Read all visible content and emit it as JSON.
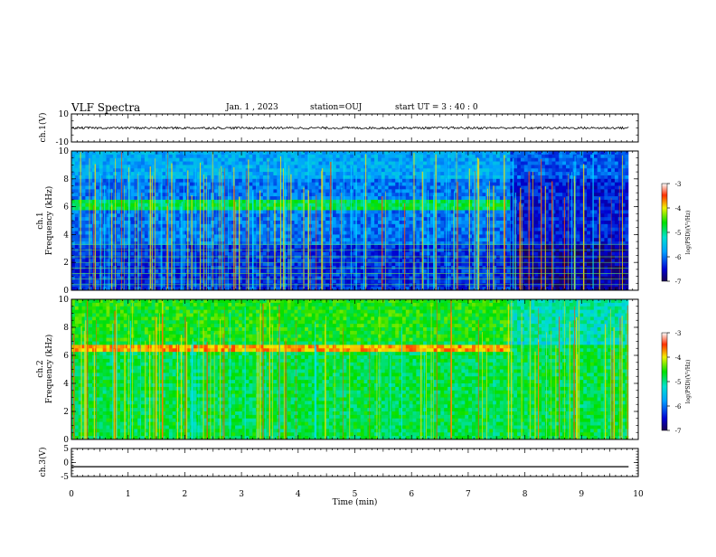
{
  "header": {
    "title": "VLF Spectra",
    "date": "Jan. 1 , 2023",
    "station": "station=OUJ",
    "start_ut": "start UT = 3 : 40 : 0"
  },
  "chart_data": [
    {
      "type": "line",
      "panel": "ch1-waveform",
      "ylabel": "ch.1(V)",
      "ylim": [
        -10,
        10
      ],
      "yticks": [
        "10",
        "-10"
      ],
      "x": [
        0,
        1,
        2,
        3,
        4,
        5,
        6,
        7,
        8,
        9,
        9.83
      ],
      "y": [
        0,
        0,
        0,
        0,
        0,
        0,
        0,
        0,
        0,
        0,
        0
      ],
      "note_values": "noisy trace near 0 V, about ±1 V amplitude"
    },
    {
      "type": "heatmap",
      "panel": "ch1-spectrogram",
      "ylabel": "ch.1\nFrequency (kHz)",
      "ylim": [
        0,
        10
      ],
      "yticks": [
        "0",
        "2",
        "4",
        "6",
        "8",
        "10"
      ],
      "xlim": [
        0,
        10
      ],
      "data_end_min": 9.83,
      "colorbar": {
        "label": "log(PSD)(V²/Hz)",
        "min": -7,
        "max": -3,
        "ticks": [
          "-3",
          "-4",
          "-5",
          "-6",
          "-7"
        ]
      },
      "band_khz": [
        5.8,
        6.4
      ],
      "band_end_min": 7.7
    },
    {
      "type": "heatmap",
      "panel": "ch2-spectrogram",
      "ylabel": "ch.2\nFrequency (kHz)",
      "ylim": [
        0,
        10
      ],
      "yticks": [
        "0",
        "2",
        "4",
        "6",
        "8",
        "10"
      ],
      "xlim": [
        0,
        10
      ],
      "data_end_min": 9.83,
      "colorbar": {
        "label": "log(PSD)(V²/Hz)",
        "min": -7,
        "max": -3,
        "ticks": [
          "-3",
          "-4",
          "-5",
          "-6",
          "-7"
        ]
      },
      "band_khz": [
        6.2,
        6.8
      ],
      "band_end_min": 7.7
    },
    {
      "type": "line",
      "panel": "ch3-waveform",
      "ylabel": "ch.3(V)",
      "ylim": [
        -5,
        5
      ],
      "yticks": [
        "5",
        "0",
        "-5"
      ],
      "x": [
        0,
        9.83
      ],
      "y": [
        -1.5,
        -1.5
      ]
    }
  ],
  "xaxis": {
    "label": "Time (min)",
    "ticks": [
      "0",
      "1",
      "2",
      "3",
      "4",
      "5",
      "6",
      "7",
      "8",
      "9",
      "10"
    ],
    "range": [
      0,
      10
    ]
  },
  "colors": {
    "frame": "#000000",
    "trace": "#000000"
  }
}
